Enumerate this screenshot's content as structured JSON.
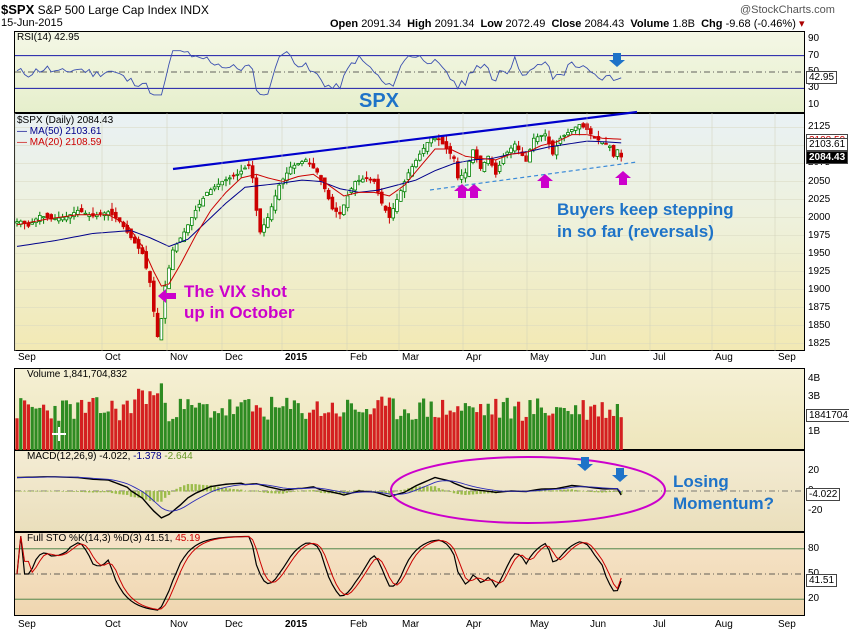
{
  "header": {
    "symbol": "$SPX",
    "description": "S&P 500 Large Cap Index",
    "exchange": "INDX",
    "date": "15-Jun-2015",
    "open_label": "Open",
    "open": "2091.34",
    "high_label": "High",
    "high": "2091.34",
    "low_label": "Low",
    "low": "2072.49",
    "close_label": "Close",
    "close": "2084.43",
    "volume_label": "Volume",
    "volume": "1.8B",
    "chg_label": "Chg",
    "chg": "-9.68 (-0.46%)",
    "watermark": "@StockCharts.com"
  },
  "rsi_legend": "RSI(14) 42.95",
  "main_legend": "$SPX (Daily) 2084.43",
  "ma50_legend": "MA(50) 2103.61",
  "ma20_legend": "MA(20) 2108.59",
  "vol_legend": "Volume 1,841,704,832",
  "macd_legend_a": "MACD(12,26,9) -4.022,",
  "macd_legend_b": "-1.378",
  "macd_legend_c": "-2.644",
  "sto_legend_a": "Full STO %K(14,3) %D(3) 41.51,",
  "sto_legend_b": "45.19",
  "value_tags": {
    "rsi": "42.95",
    "ma_a": "2108.59",
    "ma_b": "2103.61",
    "close": "2084.43",
    "volume": "1841704",
    "macd": "-4.022",
    "sto": "41.51"
  },
  "annotations": {
    "spx": "SPX",
    "vix_1": "The VIX shot",
    "vix_2": "up in October",
    "buyers_1": "Buyers keep stepping",
    "buyers_2": "in so far  (reversals)",
    "losing_1": "Losing",
    "losing_2": "Momentum?"
  },
  "colors": {
    "price_up": "#008000",
    "price_down": "#cc0000",
    "ma50": "#00008b",
    "ma20": "#cc0000",
    "trendline": "#0000cc",
    "annotation_blue": "#1e73c8",
    "annotation_magenta": "#cc00cc"
  },
  "chart_data": {
    "type": "line",
    "x_axis_labels": [
      "Sep",
      "Oct",
      "Nov",
      "Dec",
      "2015",
      "Feb",
      "Mar",
      "Apr",
      "May",
      "Jun",
      "Jul",
      "Aug",
      "Sep"
    ],
    "price": {
      "y_ticks": [
        1825,
        1850,
        1875,
        1900,
        1925,
        1950,
        1975,
        2000,
        2025,
        2050,
        2075,
        2100,
        2125
      ],
      "ylim": [
        1815,
        2145
      ],
      "series": [
        {
          "name": "$SPX (Daily)",
          "anchors": [
            [
              1,
              1995
            ],
            [
              3,
              1988
            ],
            [
              6,
              2003
            ],
            [
              9,
              1998
            ],
            [
              13,
              2001
            ],
            [
              16,
              2010
            ],
            [
              20,
              2002
            ],
            [
              24,
              2008
            ],
            [
              27,
              1995
            ],
            [
              30,
              1972
            ],
            [
              33,
              1950
            ],
            [
              35,
              1910
            ],
            [
              36,
              1870
            ],
            [
              37,
              1835
            ],
            [
              38,
              1860
            ],
            [
              39,
              1905
            ],
            [
              41,
              1955
            ],
            [
              44,
              1980
            ],
            [
              47,
              2010
            ],
            [
              50,
              2035
            ],
            [
              54,
              2050
            ],
            [
              58,
              2060
            ],
            [
              61,
              2073
            ],
            [
              62,
              2055
            ],
            [
              63,
              2010
            ],
            [
              64,
              1980
            ],
            [
              66,
              2000
            ],
            [
              69,
              2045
            ],
            [
              72,
              2070
            ],
            [
              76,
              2080
            ],
            [
              79,
              2063
            ],
            [
              81,
              2040
            ],
            [
              83,
              2012
            ],
            [
              85,
              2005
            ],
            [
              87,
              2030
            ],
            [
              89,
              2050
            ],
            [
              92,
              2055
            ],
            [
              94,
              2050
            ],
            [
              96,
              2020
            ],
            [
              98,
              2000
            ],
            [
              100,
              2025
            ],
            [
              103,
              2062
            ],
            [
              106,
              2088
            ],
            [
              109,
              2112
            ],
            [
              111,
              2108
            ],
            [
              113,
              2096
            ],
            [
              115,
              2082
            ],
            [
              116,
              2055
            ],
            [
              118,
              2062
            ],
            [
              120,
              2094
            ],
            [
              122,
              2068
            ],
            [
              124,
              2085
            ],
            [
              126,
              2060
            ],
            [
              128,
              2085
            ],
            [
              131,
              2102
            ],
            [
              134,
              2078
            ],
            [
              136,
              2110
            ],
            [
              139,
              2116
            ],
            [
              141,
              2088
            ],
            [
              143,
              2110
            ],
            [
              146,
              2122
            ],
            [
              148,
              2129
            ],
            [
              150,
              2122
            ],
            [
              152,
              2110
            ],
            [
              154,
              2105
            ],
            [
              156,
              2099
            ],
            [
              157,
              2085
            ],
            [
              158,
              2094
            ],
            [
              159,
              2084
            ]
          ]
        },
        {
          "name": "MA(50)",
          "anchors": [
            [
              0,
              1960
            ],
            [
              10,
              1968
            ],
            [
              20,
              1978
            ],
            [
              30,
              1982
            ],
            [
              35,
              1972
            ],
            [
              40,
              1960
            ],
            [
              45,
              1970
            ],
            [
              50,
              1995
            ],
            [
              55,
              2020
            ],
            [
              60,
              2042
            ],
            [
              65,
              2045
            ],
            [
              70,
              2048
            ],
            [
              75,
              2052
            ],
            [
              80,
              2050
            ],
            [
              85,
              2040
            ],
            [
              90,
              2035
            ],
            [
              95,
              2038
            ],
            [
              100,
              2045
            ],
            [
              105,
              2052
            ],
            [
              110,
              2065
            ],
            [
              115,
              2075
            ],
            [
              120,
              2080
            ],
            [
              125,
              2082
            ],
            [
              130,
              2088
            ],
            [
              135,
              2092
            ],
            [
              140,
              2098
            ],
            [
              145,
              2102
            ],
            [
              150,
              2106
            ],
            [
              155,
              2105
            ],
            [
              159,
              2103.61
            ]
          ]
        },
        {
          "name": "MA(20)",
          "anchors": [
            [
              0,
              1990
            ],
            [
              8,
              1998
            ],
            [
              16,
              2004
            ],
            [
              24,
              2004
            ],
            [
              29,
              1990
            ],
            [
              33,
              1960
            ],
            [
              36,
              1925
            ],
            [
              38,
              1905
            ],
            [
              40,
              1908
            ],
            [
              43,
              1935
            ],
            [
              47,
              1975
            ],
            [
              51,
              2010
            ],
            [
              55,
              2035
            ],
            [
              59,
              2055
            ],
            [
              63,
              2060
            ],
            [
              66,
              2055
            ],
            [
              70,
              2050
            ],
            [
              74,
              2057
            ],
            [
              78,
              2060
            ],
            [
              82,
              2045
            ],
            [
              86,
              2030
            ],
            [
              90,
              2035
            ],
            [
              94,
              2035
            ],
            [
              98,
              2030
            ],
            [
              102,
              2045
            ],
            [
              106,
              2070
            ],
            [
              110,
              2095
            ],
            [
              114,
              2095
            ],
            [
              118,
              2085
            ],
            [
              122,
              2082
            ],
            [
              126,
              2080
            ],
            [
              130,
              2088
            ],
            [
              134,
              2090
            ],
            [
              138,
              2100
            ],
            [
              142,
              2105
            ],
            [
              146,
              2115
            ],
            [
              150,
              2115
            ],
            [
              154,
              2110
            ],
            [
              159,
              2108.59
            ]
          ]
        }
      ]
    },
    "rsi": {
      "y_ticks": [
        10,
        30,
        50,
        70,
        90
      ],
      "ylim": [
        0,
        100
      ],
      "current": 42.95
    },
    "volume": {
      "y_ticks": [
        "1B",
        "2B",
        "3B",
        "4B"
      ],
      "current": 1841704832
    },
    "macd": {
      "y_ticks": [
        -20,
        0,
        20
      ],
      "macd": -4.022,
      "signal": -1.378,
      "histogram": -2.644
    },
    "full_sto": {
      "y_ticks": [
        20,
        50,
        80
      ],
      "k": 41.51,
      "d": 45.19
    }
  }
}
